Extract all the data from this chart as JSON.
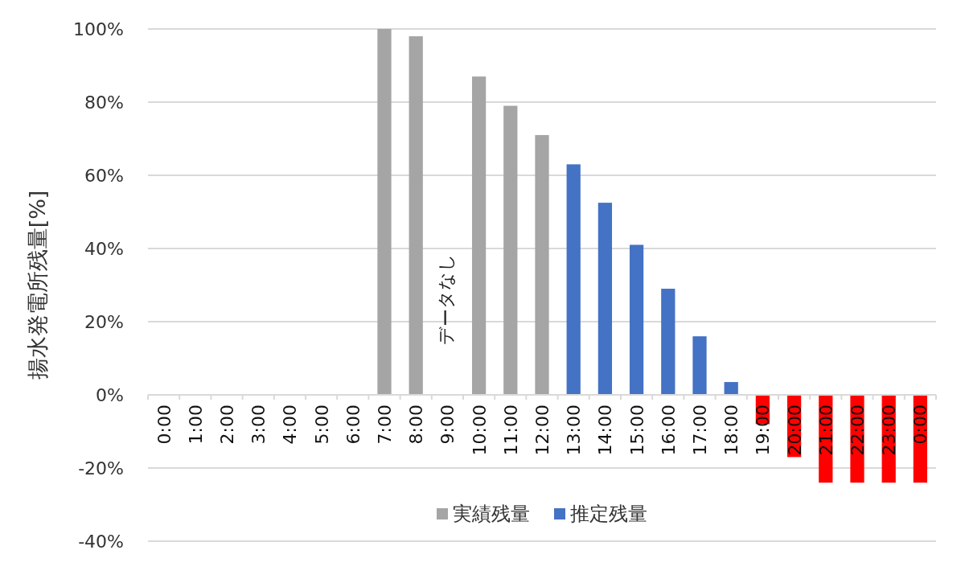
{
  "chart_data": {
    "type": "bar",
    "ylabel": "揚水発電所残量[%]",
    "categories": [
      "0:00",
      "1:00",
      "2:00",
      "3:00",
      "4:00",
      "5:00",
      "6:00",
      "7:00",
      "8:00",
      "9:00",
      "10:00",
      "11:00",
      "12:00",
      "13:00",
      "14:00",
      "15:00",
      "16:00",
      "17:00",
      "18:00",
      "19:00",
      "20:00",
      "21:00",
      "22:00",
      "23:00",
      "0:00"
    ],
    "series": [
      {
        "name": "実績残量",
        "color": "#a5a5a5",
        "values": [
          null,
          null,
          null,
          null,
          null,
          null,
          null,
          100,
          98,
          null,
          87,
          79,
          71,
          null,
          null,
          null,
          null,
          null,
          null,
          null,
          null,
          null,
          null,
          null,
          null
        ]
      },
      {
        "name": "推定残量",
        "color": "#4472c4",
        "values": [
          null,
          null,
          null,
          null,
          null,
          null,
          null,
          null,
          null,
          null,
          null,
          null,
          null,
          63,
          52.5,
          41,
          29,
          16,
          3.5,
          null,
          null,
          null,
          null,
          null,
          null
        ]
      },
      {
        "color": "#ff0000",
        "values": [
          null,
          null,
          null,
          null,
          null,
          null,
          null,
          null,
          null,
          null,
          null,
          null,
          null,
          null,
          null,
          null,
          null,
          null,
          null,
          -8,
          -17,
          -24,
          -24,
          -24,
          -24
        ]
      }
    ],
    "ylim": [
      -40,
      100
    ],
    "yticks": [
      {
        "value": -40,
        "label": "-40%"
      },
      {
        "value": -20,
        "label": "-20%"
      },
      {
        "value": 0,
        "label": "0%"
      },
      {
        "value": 20,
        "label": "20%"
      },
      {
        "value": 40,
        "label": "40%"
      },
      {
        "value": 60,
        "label": "60%"
      },
      {
        "value": 80,
        "label": "80%"
      },
      {
        "value": 100,
        "label": "100%"
      }
    ],
    "grid": "y",
    "legend": "bottom",
    "annotations": [
      "データなし"
    ]
  }
}
